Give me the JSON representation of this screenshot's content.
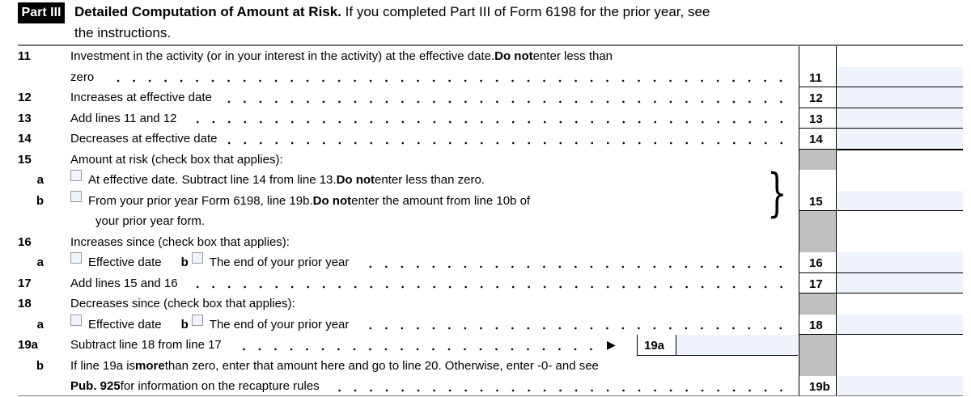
{
  "header": {
    "part_label": "Part III",
    "title_bold": "Detailed Computation of Amount at Risk.",
    "title_rest": " If you completed Part III of Form 6198 for the prior year, see",
    "title_line2": "the instructions."
  },
  "lines": {
    "l11": {
      "num": "11",
      "t1": "Investment in the activity (or in your interest in the activity) at the effective date. ",
      "b1": "Do not",
      "t2": " enter less than",
      "t3": "zero",
      "box": "11"
    },
    "l12": {
      "num": "12",
      "t1": "Increases at effective date",
      "box": "12"
    },
    "l13": {
      "num": "13",
      "t1": "Add lines 11 and 12",
      "box": "13"
    },
    "l14": {
      "num": "14",
      "t1": "Decreases at effective date",
      "box": "14"
    },
    "l15": {
      "num": "15",
      "t1": "Amount at risk (check box that applies):",
      "box": "15",
      "a": {
        "sub": "a",
        "t1": "At effective date. Subtract line 14 from line 13. ",
        "b1": "Do not",
        "t2": " enter less than zero."
      },
      "b": {
        "sub": "b",
        "t1": "From your prior year Form 6198, line 19b. ",
        "b1": "Do not",
        "t2": " enter the amount from line 10b of",
        "t3": "your prior year form."
      }
    },
    "l16": {
      "num": "16",
      "t1": "Increases since (check box that applies):",
      "box": "16",
      "a": {
        "sub": "a",
        "opt_a": "Effective date",
        "sub_b": "b",
        "opt_b": "The end of your prior year"
      }
    },
    "l17": {
      "num": "17",
      "t1": "Add lines 15 and 16",
      "box": "17"
    },
    "l18": {
      "num": "18",
      "t1": "Decreases since (check box that applies):",
      "box": "18",
      "a": {
        "sub": "a",
        "opt_a": "Effective date",
        "sub_b": "b",
        "opt_b": "The end of your prior year"
      }
    },
    "l19a": {
      "num": "19a",
      "t1": "Subtract line 18 from line 17",
      "arrow": "▶",
      "box": "19a"
    },
    "l19b": {
      "sub": "b",
      "t1": "If line 19a is ",
      "b1": "more",
      "t2": " than zero, enter that amount here and go to line 20. Otherwise, enter -0- and see",
      "b2": "Pub. 925",
      "t3": " for information on the recapture rules",
      "box": "19b"
    }
  },
  "colors": {
    "field": "#eef3fc",
    "shaded": "#bfbfbf"
  }
}
